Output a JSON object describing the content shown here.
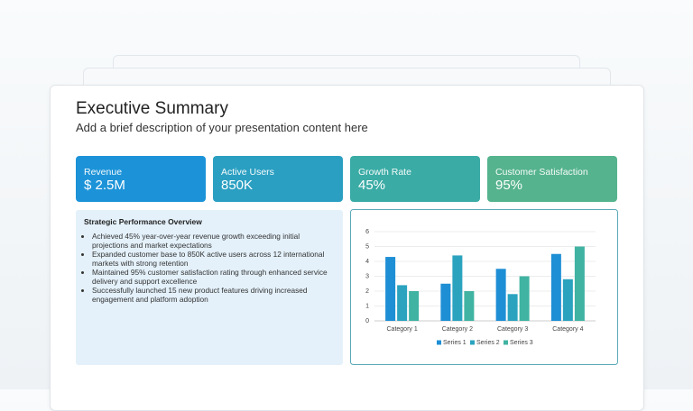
{
  "header": {
    "title": "Executive Summary",
    "subtitle": "Add a brief description of your presentation content here"
  },
  "kpis": [
    {
      "label": "Revenue",
      "value": "$ 2.5M"
    },
    {
      "label": "Active Users",
      "value": "850K"
    },
    {
      "label": "Growth Rate",
      "value": "45%"
    },
    {
      "label": "Customer Satisfaction",
      "value": "95%"
    }
  ],
  "overview": {
    "title": "Strategic Performance Overview",
    "bullets": [
      "Achieved 45% year-over-year revenue growth exceeding initial projections and market expectations",
      "Expanded customer base to 850K active users across 12 international markets with strong retention",
      "Maintained 95% customer satisfaction rating through enhanced service delivery and support excellence",
      "Successfully launched 15 new product features driving increased engagement and platform adoption"
    ]
  },
  "chart_data": {
    "type": "bar",
    "categories": [
      "Category 1",
      "Category 2",
      "Category 3",
      "Category 4"
    ],
    "series": [
      {
        "name": "Series 1",
        "color": "#1e8fd5",
        "values": [
          4.3,
          2.5,
          3.5,
          4.5
        ]
      },
      {
        "name": "Series 2",
        "color": "#2ba3bf",
        "values": [
          2.4,
          4.4,
          1.8,
          2.8
        ]
      },
      {
        "name": "Series 3",
        "color": "#40b3a2",
        "values": [
          2,
          2,
          3,
          5
        ]
      }
    ],
    "ylim": [
      0,
      6
    ],
    "yticks": [
      0,
      1,
      2,
      3,
      4,
      5,
      6
    ],
    "grid": true,
    "legend": "bottom"
  }
}
